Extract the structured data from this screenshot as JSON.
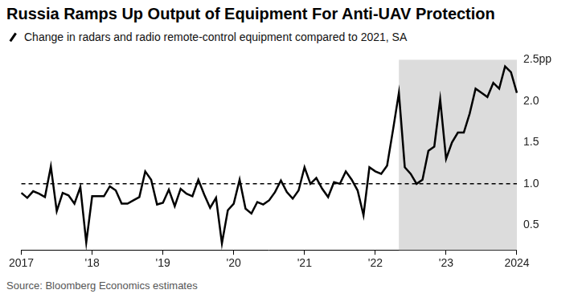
{
  "chart_data": {
    "type": "line",
    "title": "Russia Ramps Up Output of Equipment For Anti-UAV Protection",
    "subtitle": "Change in radars and radio remote-control equipment compared to 2021, SA",
    "source": "Source: Bloomberg Economics estimates",
    "categories": [
      "2017",
      null,
      null,
      null,
      null,
      null,
      null,
      null,
      null,
      null,
      null,
      null,
      "'18",
      null,
      null,
      null,
      null,
      null,
      null,
      null,
      null,
      null,
      null,
      null,
      "'19",
      null,
      null,
      null,
      null,
      null,
      null,
      null,
      null,
      null,
      null,
      null,
      "'20",
      null,
      null,
      null,
      null,
      null,
      null,
      null,
      null,
      null,
      null,
      null,
      "'21",
      null,
      null,
      null,
      null,
      null,
      null,
      null,
      null,
      null,
      null,
      null,
      "'22",
      null,
      null,
      null,
      null,
      null,
      null,
      null,
      null,
      null,
      null,
      null,
      "'23",
      null,
      null,
      null,
      null,
      null,
      null,
      null,
      null,
      null,
      null,
      null,
      "2024"
    ],
    "values": [
      0.89,
      0.83,
      0.91,
      0.88,
      0.84,
      1.21,
      0.67,
      0.89,
      0.86,
      0.76,
      0.96,
      0.29,
      0.85,
      0.85,
      0.85,
      0.97,
      0.92,
      0.76,
      0.76,
      0.8,
      0.84,
      1.15,
      1.05,
      0.75,
      0.77,
      0.93,
      0.73,
      0.94,
      0.88,
      0.85,
      1.05,
      0.87,
      0.71,
      0.83,
      0.28,
      0.68,
      0.76,
      1.05,
      0.7,
      0.64,
      0.78,
      0.75,
      0.8,
      0.9,
      1.04,
      0.9,
      0.82,
      0.92,
      1.2,
      1.0,
      1.07,
      0.94,
      0.84,
      1.02,
      1.0,
      1.15,
      1.05,
      0.92,
      0.62,
      1.2,
      1.15,
      1.12,
      1.22,
      1.65,
      2.1,
      1.2,
      1.12,
      1.0,
      1.05,
      1.4,
      1.45,
      2.02,
      1.3,
      1.5,
      1.62,
      1.62,
      1.85,
      2.15,
      2.1,
      2.05,
      2.22,
      2.15,
      2.42,
      2.35,
      2.1
    ],
    "color": "#000000",
    "baseline": 1,
    "shaded": [
      64,
      84
    ],
    "ylim": [
      0.2,
      2.5
    ],
    "yticks": [
      0.5,
      {
        "value": 1,
        "label": "1.0"
      },
      1.5,
      {
        "value": 2,
        "label": "2.0"
      },
      {
        "value": 2.5,
        "label": "2.5pp"
      }
    ],
    "grid": false
  }
}
